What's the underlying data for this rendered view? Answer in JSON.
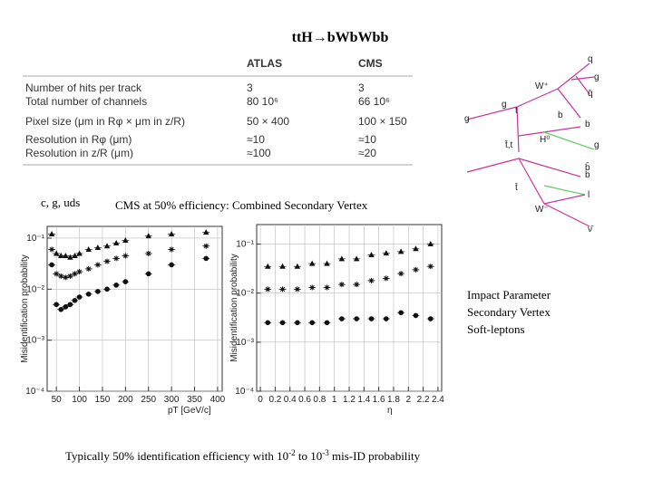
{
  "title": "ttH→bWbWbb",
  "table": {
    "header": [
      "",
      "ATLAS",
      "CMS"
    ],
    "rows": [
      [
        "Number of hits per track",
        "3",
        "3"
      ],
      [
        "Total number of channels",
        "80 10⁶",
        "66 10⁶"
      ],
      [
        "Pixel size (μm in Rφ × μm in z/R)",
        "50 × 400",
        "100 × 150"
      ],
      [
        "Resolution in Rφ (μm)",
        "≈10",
        "≈10"
      ],
      [
        "Resolution in z/R (μm)",
        "≈100",
        "≈20"
      ]
    ]
  },
  "diagram": {
    "labels": [
      "q",
      "g",
      "q̄",
      "W⁺",
      "g",
      "t",
      "b",
      "b",
      "g",
      "t̄,t",
      "H⁰",
      "b",
      "g",
      "b̄",
      "t̄",
      "l",
      "W⁻",
      "ν̄"
    ]
  },
  "flavours": "c, g, uds",
  "subtitle": "CMS at 50% efficiency: Combined Secondary Vertex",
  "methods": [
    "Impact Parameter",
    "Secondary Vertex",
    "Soft-leptons"
  ],
  "footer": [
    "Typically 50% identification efficiency with 10",
    "-2",
    " to 10",
    "-3",
    " mis-ID probability"
  ],
  "chart_data": [
    {
      "type": "scatter",
      "x_label": "pT [GeV/c]",
      "y_label": "Misidentification probability",
      "log_y": true,
      "grid": true,
      "x": [
        40,
        50,
        60,
        70,
        80,
        90,
        100,
        120,
        140,
        160,
        180,
        200,
        250,
        300,
        375
      ],
      "xlim": [
        30,
        410
      ],
      "xticks": [
        50,
        100,
        150,
        200,
        250,
        300,
        350,
        400
      ],
      "ylim": [
        0.0001,
        0.17
      ],
      "yticks": [
        {
          "value": 0.0001,
          "label": "10⁻⁴"
        },
        {
          "value": 0.001,
          "label": "10⁻³"
        },
        {
          "value": 0.01,
          "label": "10⁻²"
        },
        {
          "value": 0.1,
          "label": "10⁻¹"
        }
      ],
      "series": [
        {
          "marker": "triangle",
          "color": "#111",
          "values": [
            0.12,
            0.05,
            0.045,
            0.045,
            0.042,
            0.045,
            0.05,
            0.06,
            0.065,
            0.07,
            0.08,
            0.09,
            0.11,
            0.12,
            0.13
          ]
        },
        {
          "marker": "star",
          "color": "#111",
          "values": [
            0.06,
            0.02,
            0.018,
            0.017,
            0.018,
            0.02,
            0.022,
            0.025,
            0.03,
            0.035,
            0.04,
            0.045,
            0.05,
            0.06,
            0.07
          ]
        },
        {
          "marker": "circle",
          "color": "#111",
          "values": [
            0.03,
            0.005,
            0.004,
            0.0045,
            0.005,
            0.006,
            0.007,
            0.008,
            0.009,
            0.01,
            0.012,
            0.014,
            0.02,
            0.03,
            0.04
          ]
        }
      ]
    },
    {
      "type": "scatter",
      "x_label": "η",
      "y_label": "Misidentification probability",
      "log_y": true,
      "grid": true,
      "x": [
        0.1,
        0.3,
        0.5,
        0.7,
        0.9,
        1.1,
        1.3,
        1.5,
        1.7,
        1.9,
        2.1,
        2.3
      ],
      "xlim": [
        -0.05,
        2.45
      ],
      "xticks": [
        0,
        0.2,
        0.4,
        0.6,
        0.8,
        1,
        1.2,
        1.4,
        1.6,
        1.8,
        2,
        2.2,
        2.4
      ],
      "ylim": [
        0.0001,
        0.25
      ],
      "yticks": [
        {
          "value": 0.0001,
          "label": "10⁻⁴"
        },
        {
          "value": 0.001,
          "label": "10⁻³"
        },
        {
          "value": 0.01,
          "label": "10⁻²"
        },
        {
          "value": 0.1,
          "label": "10⁻¹"
        }
      ],
      "series": [
        {
          "marker": "triangle",
          "color": "#111",
          "values": [
            0.035,
            0.035,
            0.035,
            0.04,
            0.04,
            0.05,
            0.05,
            0.06,
            0.065,
            0.07,
            0.08,
            0.1
          ]
        },
        {
          "marker": "star",
          "color": "#111",
          "values": [
            0.012,
            0.012,
            0.012,
            0.013,
            0.013,
            0.015,
            0.015,
            0.018,
            0.02,
            0.025,
            0.03,
            0.035
          ]
        },
        {
          "marker": "circle",
          "color": "#111",
          "values": [
            0.0025,
            0.0025,
            0.0025,
            0.0025,
            0.0025,
            0.003,
            0.003,
            0.003,
            0.003,
            0.004,
            0.0035,
            0.003
          ]
        }
      ]
    }
  ]
}
